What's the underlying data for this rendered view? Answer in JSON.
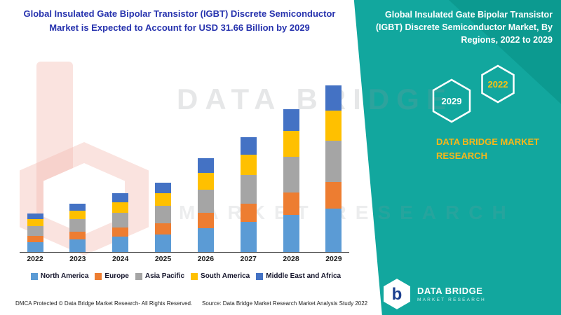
{
  "header": {
    "left_title": "Global Insulated Gate Bipolar Transistor (IGBT) Discrete Semiconductor Market is Expected to Account for USD 31.66 Billion by 2029",
    "right_title": "Global Insulated Gate Bipolar Transistor (IGBT) Discrete Semiconductor Market, By Regions, 2022 to 2029"
  },
  "side_panel": {
    "accent_color": "#12a79e",
    "hexagons": [
      {
        "label": "2029"
      },
      {
        "label": "2022"
      }
    ],
    "brand_text": "DATA BRIDGE MARKET RESEARCH"
  },
  "watermark": {
    "line1": "DATA BRIDGE",
    "line2": "MARKET RESEARCH"
  },
  "chart_data": {
    "type": "bar",
    "stacked": true,
    "title": "Global Insulated Gate Bipolar Transistor (IGBT) Discrete Semiconductor Market, By Regions, 2022 to 2029",
    "unit": "USD Billion",
    "categories": [
      "2022",
      "2023",
      "2024",
      "2025",
      "2026",
      "2027",
      "2028",
      "2029"
    ],
    "series": [
      {
        "name": "North America",
        "color": "#5b9bd5",
        "values": [
          1.9,
          2.4,
          2.9,
          3.4,
          4.6,
          5.7,
          7.0,
          8.2
        ]
      },
      {
        "name": "Europe",
        "color": "#ed7d31",
        "values": [
          1.2,
          1.5,
          1.8,
          2.1,
          2.9,
          3.5,
          4.3,
          5.1
        ]
      },
      {
        "name": "Asia Pacific",
        "color": "#a5a5a5",
        "values": [
          1.8,
          2.3,
          2.8,
          3.3,
          4.4,
          5.4,
          6.8,
          7.9
        ]
      },
      {
        "name": "South America",
        "color": "#ffc000",
        "values": [
          1.3,
          1.6,
          2.0,
          2.4,
          3.2,
          3.9,
          4.9,
          5.7
        ]
      },
      {
        "name": "Middle East and Africa",
        "color": "#4472c4",
        "values": [
          1.1,
          1.4,
          1.7,
          2.0,
          2.7,
          3.3,
          4.1,
          4.8
        ]
      }
    ],
    "ylim": [
      0,
      33
    ],
    "grid": false,
    "legend_position": "bottom",
    "xlabel": "",
    "ylabel": ""
  },
  "footer": {
    "dmca": "DMCA Protected © Data Bridge Market Research- All Rights Reserved.",
    "source": "Source: Data Bridge Market Research Market Analysis Study 2022"
  },
  "logo": {
    "monogram": "b",
    "name": "DATA BRIDGE",
    "tagline": "MARKET RESEARCH"
  }
}
